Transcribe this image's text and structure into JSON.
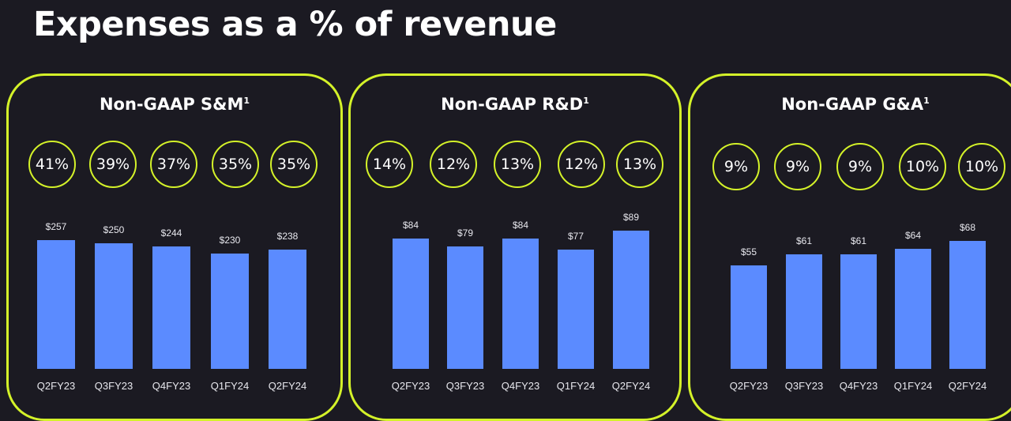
{
  "title": "Expenses as a % of revenue",
  "colors": {
    "background": "#1b1a22",
    "accent": "#d4f229",
    "bar": "#5b8bff"
  },
  "chart_data": [
    {
      "type": "bar",
      "title": "Non-GAAP S&M",
      "footnote": "1",
      "categories": [
        "Q2FY23",
        "Q3FY23",
        "Q4FY23",
        "Q1FY24",
        "Q2FY24"
      ],
      "values": [
        257,
        250,
        244,
        230,
        238
      ],
      "value_labels": [
        "$257",
        "$250",
        "$244",
        "$230",
        "$238"
      ],
      "percent_of_revenue": [
        "41%",
        "39%",
        "37%",
        "35%",
        "35%"
      ]
    },
    {
      "type": "bar",
      "title": "Non-GAAP R&D",
      "footnote": "1",
      "categories": [
        "Q2FY23",
        "Q3FY23",
        "Q4FY23",
        "Q1FY24",
        "Q2FY24"
      ],
      "values": [
        84,
        79,
        84,
        77,
        89
      ],
      "value_labels": [
        "$84",
        "$79",
        "$84",
        "$77",
        "$89"
      ],
      "percent_of_revenue": [
        "14%",
        "12%",
        "13%",
        "12%",
        "13%"
      ]
    },
    {
      "type": "bar",
      "title": "Non-GAAP G&A",
      "footnote": "1",
      "categories": [
        "Q2FY23",
        "Q3FY23",
        "Q4FY23",
        "Q1FY24",
        "Q2FY24"
      ],
      "values": [
        55,
        61,
        61,
        64,
        68
      ],
      "value_labels": [
        "$55",
        "$61",
        "$61",
        "$64",
        "$68"
      ],
      "percent_of_revenue": [
        "9%",
        "9%",
        "9%",
        "10%",
        "10%"
      ]
    }
  ]
}
